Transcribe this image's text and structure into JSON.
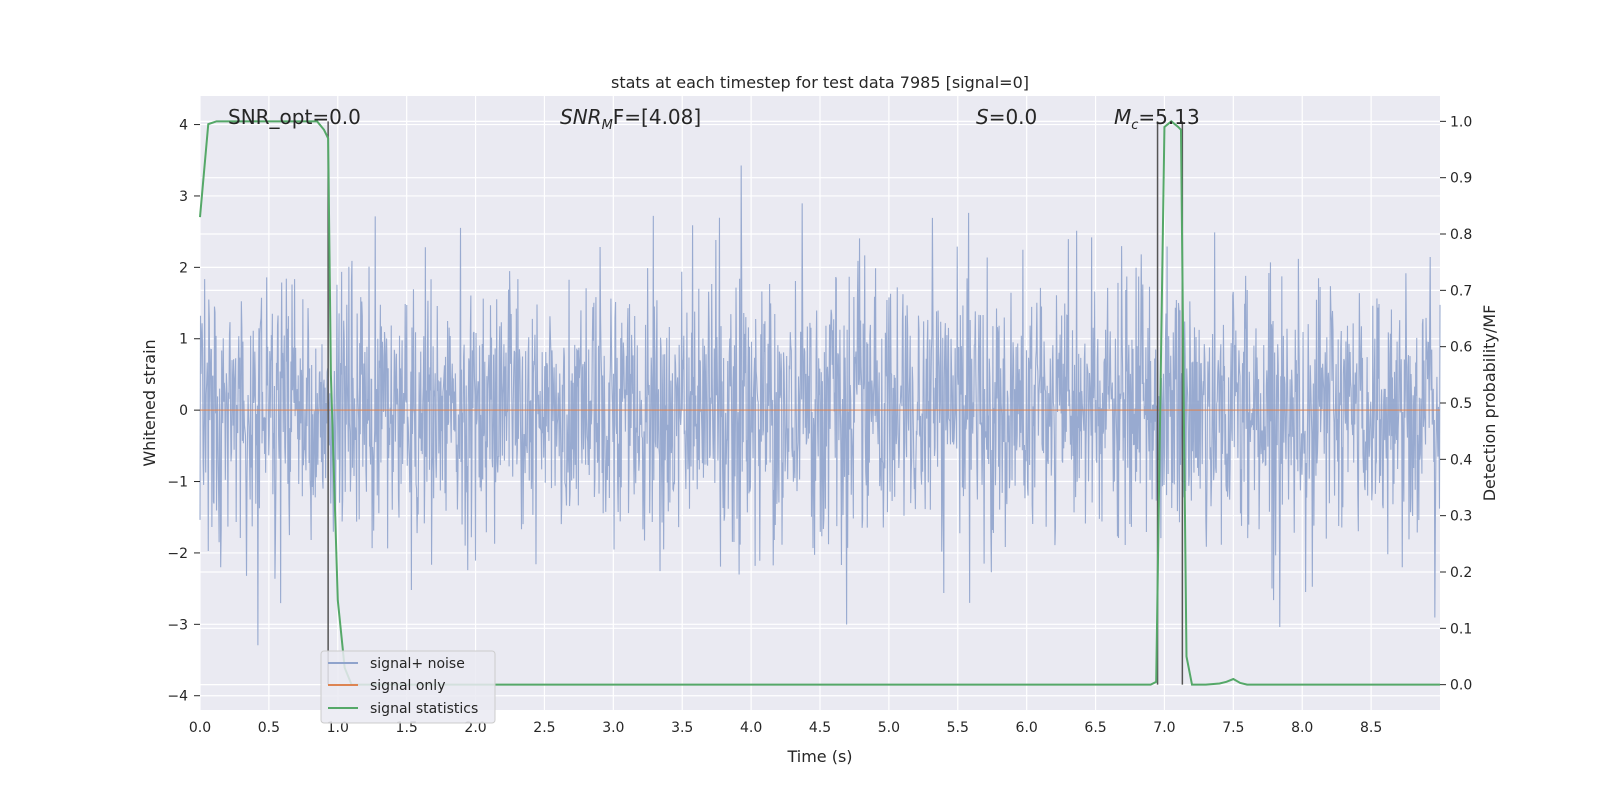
{
  "chart_data": {
    "type": "line",
    "title": "stats at each timestep for test data 7985 [signal=0]",
    "xlabel": "Time (s)",
    "ylabel": "Whitened strain",
    "y2label": "Detection probability/MF",
    "xlim": [
      0.0,
      9.0
    ],
    "ylim": [
      -4.2,
      4.4
    ],
    "y2lim": [
      -0.045,
      1.045
    ],
    "x_ticks": [
      "0.0",
      "0.5",
      "1.0",
      "1.5",
      "2.0",
      "2.5",
      "3.0",
      "3.5",
      "4.0",
      "4.5",
      "5.0",
      "5.5",
      "6.0",
      "6.5",
      "7.0",
      "7.5",
      "8.0",
      "8.5"
    ],
    "y_ticks": [
      "4",
      "3",
      "2",
      "1",
      "0",
      "−1",
      "−2",
      "−3",
      "−4"
    ],
    "y2_ticks": [
      "1.0",
      "0.9",
      "0.8",
      "0.7",
      "0.6",
      "0.5",
      "0.4",
      "0.3",
      "0.2",
      "0.1",
      "0.0"
    ],
    "annotations": {
      "snr_opt": "SNR_opt=0.0",
      "snr_mf_main": "SNR",
      "snr_mf_sub": "M",
      "snr_mf_rest": "F=[4.08]",
      "s_main": "S",
      "s_rest": "=0.0",
      "mc_main": "M",
      "mc_sub": "c",
      "mc_rest": "=5.13"
    },
    "legend": {
      "placement": "lower-left",
      "entries": [
        "signal+ noise",
        "signal only",
        "signal statistics"
      ]
    },
    "colors": {
      "noise": "#8fa3cc",
      "signal_only": "#dd8452",
      "statistics": "#55a868",
      "vline": "#555555",
      "background": "#eaeaf2"
    },
    "noise_envelope": {
      "mean": 0.0,
      "std": 0.9,
      "max_abs": 4.0
    },
    "signal_only": {
      "x": [
        0.0,
        9.0
      ],
      "y": [
        0.0,
        0.0
      ]
    },
    "vertical_lines_x": [
      0.93,
      6.95,
      7.13
    ],
    "statistics_series": {
      "x": [
        0.0,
        0.06,
        0.12,
        0.2,
        0.3,
        0.5,
        0.7,
        0.85,
        0.9,
        0.93,
        0.95,
        1.0,
        1.05,
        1.1,
        1.5,
        2.0,
        3.0,
        4.0,
        5.0,
        6.0,
        6.9,
        6.94,
        6.97,
        7.0,
        7.05,
        7.1,
        7.12,
        7.14,
        7.16,
        7.2,
        7.3,
        7.4,
        7.45,
        7.5,
        7.55,
        7.6,
        8.0,
        9.0
      ],
      "y": [
        0.83,
        0.995,
        1.0,
        1.0,
        1.0,
        1.0,
        1.0,
        1.0,
        0.985,
        0.97,
        0.55,
        0.15,
        0.03,
        0.0,
        0.0,
        0.0,
        0.0,
        0.0,
        0.0,
        0.0,
        0.0,
        0.005,
        0.5,
        0.99,
        1.0,
        0.99,
        0.985,
        0.5,
        0.05,
        0.0,
        0.0,
        0.002,
        0.005,
        0.01,
        0.003,
        0.0,
        0.0,
        0.0
      ]
    }
  }
}
